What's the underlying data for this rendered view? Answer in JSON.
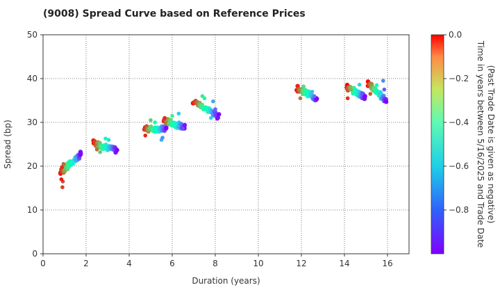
{
  "chart_data": {
    "type": "scatter",
    "title": "(9008)   Spread Curve based on Reference Prices",
    "xlabel": "Duration (years)",
    "ylabel": "Spread (bp)",
    "xlim": [
      0,
      17
    ],
    "ylim": [
      0,
      50
    ],
    "x_ticks": [
      "0",
      "2",
      "4",
      "6",
      "8",
      "10",
      "12",
      "14",
      "16"
    ],
    "y_ticks": [
      "0",
      "10",
      "20",
      "30",
      "40",
      "50"
    ],
    "grid": true,
    "colorbar": {
      "label_line1": "Time in years between 5/16/2025 and Trade Date",
      "label_line2": "(Past Trade Date is given as negative)",
      "range": [
        -1.0,
        0.0
      ],
      "ticks": [
        "0.0",
        "−0.2",
        "−0.4",
        "−0.6",
        "−0.8"
      ],
      "colormap": "rainbow"
    },
    "clusters": [
      {
        "name": "bond-0.9y",
        "x_start": 0.82,
        "x_end": 1.78,
        "y_start": 18.5,
        "y_end": 22.8,
        "extra": [
          [
            0.9,
            15.2
          ],
          [
            0.92,
            16.5
          ],
          [
            0.85,
            17.0
          ],
          [
            0.88,
            19.8
          ],
          [
            0.95,
            20.5
          ]
        ]
      },
      {
        "name": "bond-2.4y",
        "x_start": 2.35,
        "x_end": 3.4,
        "y_start": 25.3,
        "y_end": 23.6,
        "extra": [
          [
            2.5,
            23.8
          ],
          [
            2.65,
            23.2
          ],
          [
            2.9,
            26.3
          ],
          [
            3.05,
            26.0
          ]
        ]
      },
      {
        "name": "bond-4.7y",
        "x_start": 4.7,
        "x_end": 5.75,
        "y_start": 28.5,
        "y_end": 28.5,
        "extra": [
          [
            4.75,
            27.0
          ],
          [
            5.0,
            30.5
          ],
          [
            5.2,
            30.0
          ],
          [
            5.5,
            26.0
          ],
          [
            5.55,
            26.5
          ]
        ]
      },
      {
        "name": "bond-5.6y",
        "x_start": 5.6,
        "x_end": 6.6,
        "y_start": 30.5,
        "y_end": 28.8,
        "extra": [
          [
            5.65,
            31.0
          ],
          [
            6.0,
            31.5
          ],
          [
            6.3,
            32.0
          ],
          [
            6.5,
            28.6
          ]
        ]
      },
      {
        "name": "bond-7.0y",
        "x_start": 7.0,
        "x_end": 8.15,
        "y_start": 34.8,
        "y_end": 31.4,
        "extra": [
          [
            7.4,
            36.0
          ],
          [
            7.5,
            35.5
          ],
          [
            7.8,
            31.0
          ],
          [
            7.9,
            34.8
          ],
          [
            8.0,
            33.0
          ]
        ]
      },
      {
        "name": "bond-11.8y",
        "x_start": 11.8,
        "x_end": 12.75,
        "y_start": 37.8,
        "y_end": 35.3,
        "extra": [
          [
            11.95,
            35.5
          ],
          [
            12.1,
            38.2
          ],
          [
            12.5,
            37.0
          ],
          [
            12.6,
            36.0
          ]
        ]
      },
      {
        "name": "bond-14.1y",
        "x_start": 14.1,
        "x_end": 14.95,
        "y_start": 38.0,
        "y_end": 35.8,
        "extra": [
          [
            14.15,
            35.5
          ],
          [
            14.3,
            37.5
          ],
          [
            14.7,
            38.6
          ]
        ]
      },
      {
        "name": "bond-15.2y",
        "x_start": 15.1,
        "x_end": 15.95,
        "y_start": 38.8,
        "y_end": 35.0,
        "extra": [
          [
            15.2,
            36.5
          ],
          [
            15.5,
            38.5
          ],
          [
            15.8,
            39.5
          ],
          [
            15.85,
            37.5
          ]
        ]
      }
    ]
  }
}
